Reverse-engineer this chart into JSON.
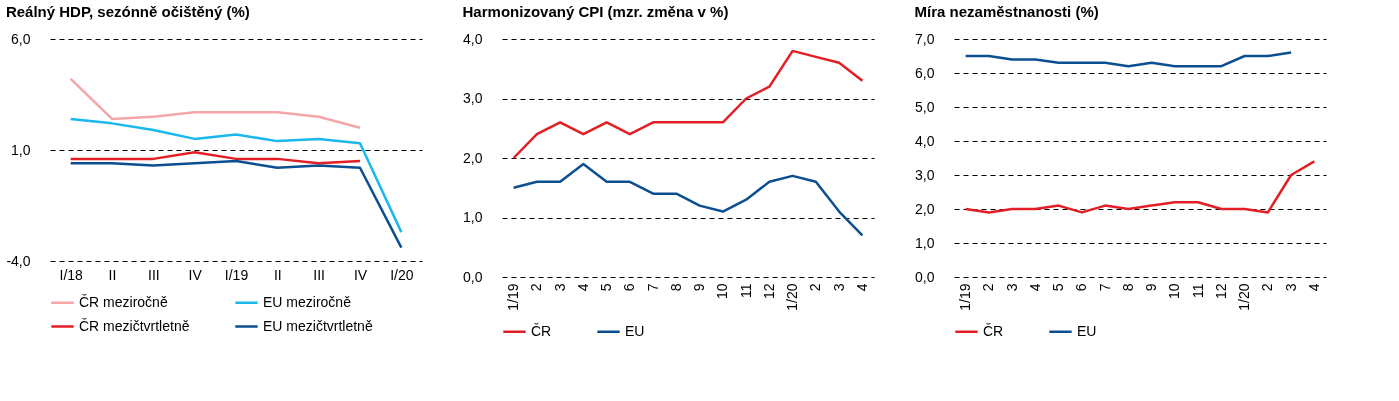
{
  "chart_data": [
    {
      "type": "line",
      "title": "Reálný HDP, sezónně očištěný (%)",
      "categories": [
        "I/18",
        "II",
        "III",
        "IV",
        "I/19",
        "II",
        "III",
        "IV",
        "I/20"
      ],
      "series": [
        {
          "name": "ČR meziročně",
          "color": "#f4a6a8",
          "values": [
            4.2,
            2.4,
            2.5,
            2.7,
            2.7,
            2.7,
            2.5,
            2.0,
            null
          ]
        },
        {
          "name": "EU meziročně",
          "color": "#1ab8ec",
          "values": [
            2.4,
            2.2,
            1.9,
            1.5,
            1.7,
            1.4,
            1.5,
            1.3,
            -2.7
          ]
        },
        {
          "name": "ČR mezičtvrtletně",
          "color": "#e31e24",
          "values": [
            0.6,
            0.6,
            0.6,
            0.9,
            0.6,
            0.6,
            0.4,
            0.5,
            null
          ]
        },
        {
          "name": "EU mezičtvrtletně",
          "color": "#0b4f91",
          "values": [
            0.4,
            0.4,
            0.3,
            0.4,
            0.5,
            0.2,
            0.3,
            0.2,
            -3.4
          ]
        }
      ],
      "ylim": [
        -4,
        6
      ],
      "yticks": [
        {
          "value": -4,
          "label": "-4,0"
        },
        {
          "value": 1,
          "label": "1,0"
        },
        {
          "value": 6,
          "label": "6,0"
        }
      ],
      "grid": "y",
      "legend": "bottom"
    },
    {
      "type": "line",
      "title": "Harmonizovaný CPI (mzr. změna v %)",
      "categories": [
        "1/19",
        "2",
        "3",
        "4",
        "5",
        "6",
        "7",
        "8",
        "9",
        "10",
        "11",
        "12",
        "1/20",
        "2",
        "3",
        "4"
      ],
      "series": [
        {
          "name": "ČR",
          "color": "#e31e24",
          "values": [
            2.0,
            2.4,
            2.6,
            2.4,
            2.6,
            2.4,
            2.6,
            2.6,
            2.6,
            2.6,
            3.0,
            3.2,
            3.8,
            3.7,
            3.6,
            3.3
          ]
        },
        {
          "name": "EU",
          "color": "#0b4f91",
          "values": [
            1.5,
            1.6,
            1.6,
            1.9,
            1.6,
            1.6,
            1.4,
            1.4,
            1.2,
            1.1,
            1.3,
            1.6,
            1.7,
            1.6,
            1.1,
            0.7
          ]
        }
      ],
      "ylim": [
        0,
        4
      ],
      "yticks": [
        {
          "value": 0,
          "label": "0,0"
        },
        {
          "value": 1,
          "label": "1,0"
        },
        {
          "value": 2,
          "label": "2,0"
        },
        {
          "value": 3,
          "label": "3,0"
        },
        {
          "value": 4,
          "label": "4,0"
        }
      ],
      "grid": "y",
      "legend": "bottom"
    },
    {
      "type": "line",
      "title": "Míra nezaměstnanosti (%)",
      "categories": [
        "1/19",
        "2",
        "3",
        "4",
        "5",
        "6",
        "7",
        "8",
        "9",
        "10",
        "11",
        "12",
        "1/20",
        "2",
        "3",
        "4"
      ],
      "series": [
        {
          "name": "ČR",
          "color": "#e31e24",
          "values": [
            2.0,
            1.9,
            2.0,
            2.0,
            2.1,
            1.9,
            2.1,
            2.0,
            2.1,
            2.2,
            2.2,
            2.0,
            2.0,
            1.9,
            3.0,
            3.4
          ]
        },
        {
          "name": "EU",
          "color": "#0b4f91",
          "values": [
            6.5,
            6.5,
            6.4,
            6.4,
            6.3,
            6.3,
            6.3,
            6.2,
            6.3,
            6.2,
            6.2,
            6.2,
            6.5,
            6.5,
            6.6,
            null
          ]
        }
      ],
      "ylim": [
        0,
        7
      ],
      "yticks": [
        {
          "value": 0,
          "label": "0,0"
        },
        {
          "value": 1,
          "label": "1,0"
        },
        {
          "value": 2,
          "label": "2,0"
        },
        {
          "value": 3,
          "label": "3,0"
        },
        {
          "value": 4,
          "label": "4,0"
        },
        {
          "value": 5,
          "label": "5,0"
        },
        {
          "value": 6,
          "label": "6,0"
        },
        {
          "value": 7,
          "label": "7,0"
        }
      ],
      "grid": "y",
      "legend": "bottom"
    }
  ]
}
